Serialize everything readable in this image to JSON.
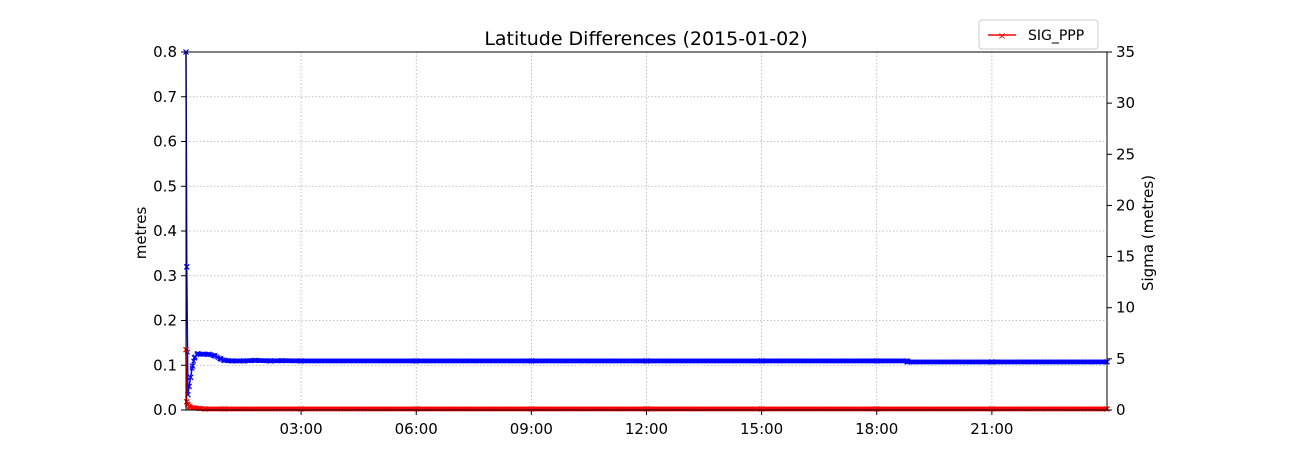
{
  "chart_data": {
    "type": "line",
    "title": "Latitude Differences (2015-01-02)",
    "ylabel": "metres",
    "ylabel_right": "Sigma (metres)",
    "x_unit": "hours",
    "xlim": [
      0,
      24
    ],
    "ylim": [
      0,
      0.8
    ],
    "ylim_right": [
      0,
      35
    ],
    "x_ticks": [
      3,
      6,
      9,
      12,
      15,
      18,
      21
    ],
    "x_tick_labels": [
      "03:00",
      "06:00",
      "09:00",
      "12:00",
      "15:00",
      "18:00",
      "21:00"
    ],
    "y_ticks": [
      0.0,
      0.1,
      0.2,
      0.3,
      0.4,
      0.5,
      0.6,
      0.7,
      0.8
    ],
    "y_tick_labels": [
      "0.0",
      "0.1",
      "0.2",
      "0.3",
      "0.4",
      "0.5",
      "0.6",
      "0.7",
      "0.8"
    ],
    "y_right_ticks": [
      0,
      5,
      10,
      15,
      20,
      25,
      30,
      35
    ],
    "y_right_tick_labels": [
      "0",
      "5",
      "10",
      "15",
      "20",
      "25",
      "30",
      "35"
    ],
    "grid": true,
    "legend_placement": "top-right",
    "series": [
      {
        "axis": "right",
        "color": "#0000ff",
        "marker": "x",
        "x": [
          0.0,
          0.02,
          0.05,
          0.08,
          0.12,
          0.17,
          0.22,
          0.3,
          0.45,
          0.6,
          0.75,
          0.9,
          1.0,
          1.2,
          1.5,
          1.8,
          2.2,
          2.5,
          3,
          6,
          9,
          12,
          15,
          18,
          18.79,
          18.8,
          21,
          24
        ],
        "y": [
          35.0,
          14.0,
          1.5,
          2.3,
          3.2,
          4.3,
          5.1,
          5.5,
          5.45,
          5.45,
          5.3,
          5.0,
          4.85,
          4.8,
          4.8,
          4.85,
          4.8,
          4.82,
          4.8,
          4.8,
          4.8,
          4.8,
          4.8,
          4.8,
          4.8,
          4.7,
          4.7,
          4.7
        ]
      },
      {
        "name": "SIG_PPP",
        "axis": "right",
        "color": "#ff0000",
        "marker": "x",
        "x": [
          0.0,
          0.02,
          0.05,
          0.1,
          0.2,
          0.35,
          0.5,
          1,
          3,
          6,
          9,
          12,
          15,
          18,
          21,
          24
        ],
        "y": [
          5.9,
          0.8,
          0.5,
          0.3,
          0.2,
          0.15,
          0.1,
          0.1,
          0.1,
          0.1,
          0.1,
          0.1,
          0.1,
          0.1,
          0.1,
          0.1
        ]
      }
    ],
    "legend": [
      {
        "label": "SIG_PPP",
        "color": "#ff0000",
        "marker": "x"
      }
    ]
  }
}
